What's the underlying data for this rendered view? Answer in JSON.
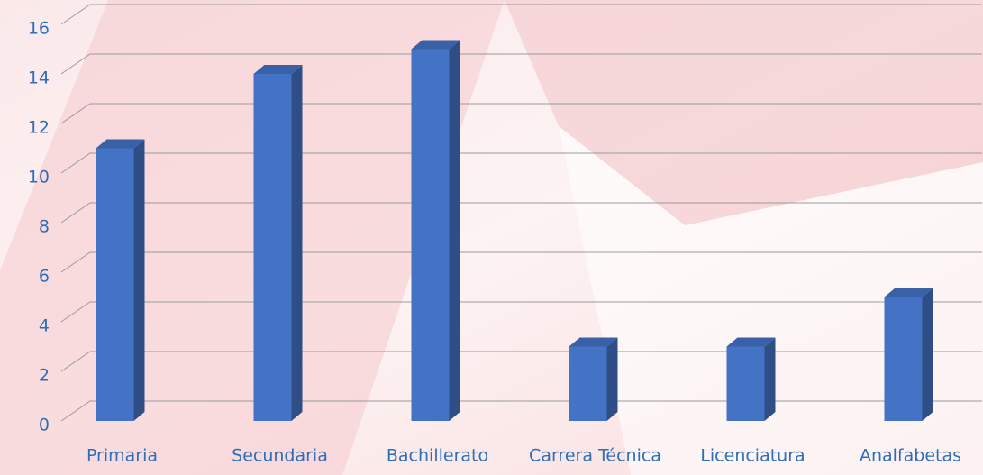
{
  "chart_data": {
    "type": "bar3d",
    "categories": [
      "Primaria",
      "Secundaria",
      "Bachillerato",
      "Carrera Técnica",
      "Licenciatura",
      "Analfabetas"
    ],
    "values": [
      11,
      14,
      15,
      3,
      3,
      5
    ],
    "color": "#4472c4",
    "ylim": [
      0,
      16
    ],
    "yticks": [
      0,
      2,
      4,
      6,
      8,
      10,
      12,
      14,
      16
    ],
    "grid": true
  }
}
